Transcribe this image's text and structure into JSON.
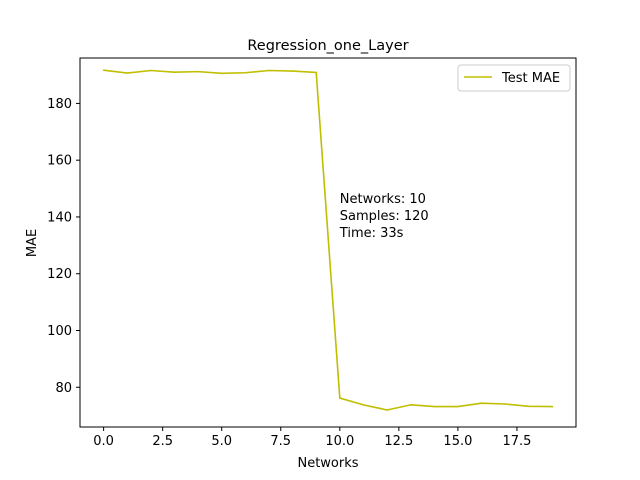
{
  "chart_data": {
    "type": "line",
    "title": "Regression_one_Layer",
    "xlabel": "Networks",
    "ylabel": "MAE",
    "xlim": [
      -1.0,
      20.0
    ],
    "ylim": [
      66.0,
      196.0
    ],
    "x_ticks": [
      0.0,
      2.5,
      5.0,
      7.5,
      10.0,
      12.5,
      15.0,
      17.5
    ],
    "x_tick_labels": [
      "0.0",
      "2.5",
      "5.0",
      "7.5",
      "10.0",
      "12.5",
      "15.0",
      "17.5"
    ],
    "y_ticks": [
      80,
      100,
      120,
      140,
      160,
      180
    ],
    "y_tick_labels": [
      "80",
      "100",
      "120",
      "140",
      "160",
      "180"
    ],
    "grid": false,
    "legend_position": "upper right",
    "series": [
      {
        "name": "Test MAE",
        "color": "#bfbf00",
        "x": [
          0,
          1,
          2,
          3,
          4,
          5,
          6,
          7,
          8,
          9,
          10,
          11,
          12,
          13,
          14,
          15,
          16,
          17,
          18,
          19
        ],
        "values": [
          191.7,
          190.7,
          191.6,
          191.0,
          191.2,
          190.6,
          190.8,
          191.6,
          191.4,
          190.9,
          76.2,
          73.8,
          72.0,
          73.8,
          73.2,
          73.2,
          74.4,
          74.1,
          73.3,
          73.2
        ]
      }
    ],
    "annotation": {
      "lines": [
        "Networks: 10",
        "Samples: 120",
        "Time: 33s"
      ],
      "x": 10.0,
      "y": 145.0
    }
  }
}
